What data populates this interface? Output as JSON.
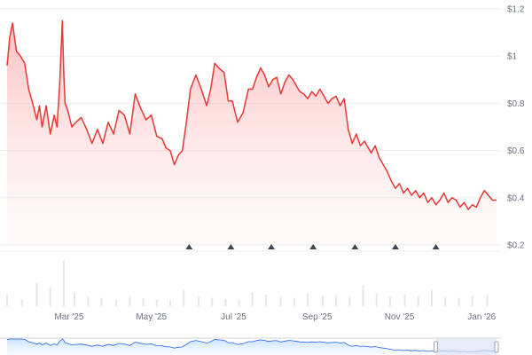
{
  "chart_data": {
    "type": "area",
    "title": "",
    "xlabel": "",
    "ylabel": "",
    "colors": {
      "line": "#e53935",
      "fill": "#fde2e2",
      "grid": "#eceef1",
      "volume": "#e5e7eb",
      "marker": "#3f4654",
      "navigator_line": "#2563eb",
      "navigator_window": "#dbe4f3"
    },
    "grid": true,
    "x_range": [
      "2025-01-14",
      "2026-01-12"
    ],
    "ylim": [
      0.2,
      1.2
    ],
    "y_tick_labels": [
      "$1.2",
      "$1",
      "$0.8",
      "$0.6",
      "$0.4",
      "$0.2"
    ],
    "y_ticks": [
      1.2,
      1.0,
      0.8,
      0.6,
      0.4,
      0.2
    ],
    "x_ticks": [
      {
        "date": "2025-03-01",
        "label": "Mar '25"
      },
      {
        "date": "2025-05-01",
        "label": "May '25"
      },
      {
        "date": "2025-07-01",
        "label": "Jul '25"
      },
      {
        "date": "2025-09-01",
        "label": "Sep '25"
      },
      {
        "date": "2025-11-01",
        "label": "Nov '25"
      },
      {
        "date": "2026-01-01",
        "label": "Jan '26"
      }
    ],
    "series": [
      {
        "x": [
          "2025-01-14",
          "2025-01-16",
          "2025-01-18",
          "2025-01-21",
          "2025-01-24",
          "2025-01-27",
          "2025-01-30",
          "2025-02-02",
          "2025-02-05",
          "2025-02-07",
          "2025-02-09",
          "2025-02-12",
          "2025-02-15",
          "2025-02-18",
          "2025-02-20",
          "2025-02-22",
          "2025-02-24",
          "2025-02-25",
          "2025-02-26",
          "2025-02-28",
          "2025-03-03",
          "2025-03-06",
          "2025-03-10",
          "2025-03-14",
          "2025-03-18",
          "2025-03-22",
          "2025-03-26",
          "2025-03-30",
          "2025-04-03",
          "2025-04-07",
          "2025-04-11",
          "2025-04-15",
          "2025-04-19",
          "2025-04-23",
          "2025-04-27",
          "2025-05-01",
          "2025-05-05",
          "2025-05-09",
          "2025-05-12",
          "2025-05-15",
          "2025-05-18",
          "2025-05-21",
          "2025-05-24",
          "2025-05-27",
          "2025-05-30",
          "2025-06-03",
          "2025-06-07",
          "2025-06-11",
          "2025-06-14",
          "2025-06-17",
          "2025-06-20",
          "2025-06-24",
          "2025-06-27",
          "2025-06-30",
          "2025-07-04",
          "2025-07-08",
          "2025-07-12",
          "2025-07-15",
          "2025-07-18",
          "2025-07-21",
          "2025-07-24",
          "2025-07-27",
          "2025-07-30",
          "2025-08-02",
          "2025-08-05",
          "2025-08-08",
          "2025-08-11",
          "2025-08-14",
          "2025-08-17",
          "2025-08-19",
          "2025-08-22",
          "2025-08-25",
          "2025-08-28",
          "2025-08-31",
          "2025-09-03",
          "2025-09-06",
          "2025-09-09",
          "2025-09-12",
          "2025-09-15",
          "2025-09-18",
          "2025-09-21",
          "2025-09-24",
          "2025-09-27",
          "2025-09-30",
          "2025-10-03",
          "2025-10-06",
          "2025-10-09",
          "2025-10-11",
          "2025-10-14",
          "2025-10-17",
          "2025-10-20",
          "2025-10-23",
          "2025-10-26",
          "2025-10-29",
          "2025-11-01",
          "2025-11-04",
          "2025-11-07",
          "2025-11-10",
          "2025-11-13",
          "2025-11-16",
          "2025-11-19",
          "2025-11-22",
          "2025-11-25",
          "2025-11-28",
          "2025-12-01",
          "2025-12-04",
          "2025-12-07",
          "2025-12-10",
          "2025-12-13",
          "2025-12-16",
          "2025-12-19",
          "2025-12-22",
          "2025-12-25",
          "2025-12-28",
          "2025-12-31",
          "2026-01-03",
          "2026-01-06",
          "2026-01-09",
          "2026-01-12"
        ],
        "values": [
          0.96,
          1.08,
          1.14,
          1.02,
          1.0,
          0.97,
          0.86,
          0.8,
          0.73,
          0.79,
          0.7,
          0.79,
          0.67,
          0.75,
          0.7,
          0.88,
          1.15,
          0.93,
          0.8,
          0.77,
          0.7,
          0.72,
          0.74,
          0.69,
          0.63,
          0.69,
          0.63,
          0.72,
          0.67,
          0.77,
          0.75,
          0.67,
          0.84,
          0.78,
          0.73,
          0.75,
          0.66,
          0.65,
          0.61,
          0.6,
          0.54,
          0.58,
          0.6,
          0.72,
          0.86,
          0.92,
          0.86,
          0.79,
          0.86,
          0.97,
          0.95,
          0.93,
          0.81,
          0.81,
          0.72,
          0.76,
          0.86,
          0.86,
          0.91,
          0.95,
          0.92,
          0.87,
          0.9,
          0.91,
          0.84,
          0.89,
          0.92,
          0.9,
          0.87,
          0.85,
          0.84,
          0.82,
          0.85,
          0.83,
          0.86,
          0.83,
          0.8,
          0.82,
          0.83,
          0.79,
          0.82,
          0.69,
          0.63,
          0.67,
          0.62,
          0.64,
          0.61,
          0.59,
          0.62,
          0.57,
          0.54,
          0.51,
          0.47,
          0.44,
          0.46,
          0.42,
          0.44,
          0.41,
          0.43,
          0.4,
          0.42,
          0.38,
          0.4,
          0.37,
          0.39,
          0.42,
          0.38,
          0.4,
          0.39,
          0.36,
          0.38,
          0.35,
          0.37,
          0.36,
          0.4,
          0.43,
          0.41,
          0.39,
          0.39
        ]
      }
    ],
    "volume_series": {
      "x": [
        "2025-01-14",
        "2025-01-25",
        "2025-02-05",
        "2025-02-15",
        "2025-02-25",
        "2025-03-05",
        "2025-03-15",
        "2025-03-25",
        "2025-04-05",
        "2025-04-15",
        "2025-04-25",
        "2025-05-05",
        "2025-05-15",
        "2025-05-25",
        "2025-06-05",
        "2025-06-15",
        "2025-06-25",
        "2025-07-05",
        "2025-07-15",
        "2025-07-25",
        "2025-08-05",
        "2025-08-15",
        "2025-08-25",
        "2025-09-05",
        "2025-09-15",
        "2025-09-25",
        "2025-10-05",
        "2025-10-15",
        "2025-10-25",
        "2025-11-05",
        "2025-11-15",
        "2025-11-25",
        "2025-12-05",
        "2025-12-15",
        "2025-12-25",
        "2026-01-05"
      ],
      "values": [
        0.25,
        0.15,
        0.5,
        0.4,
        1.0,
        0.3,
        0.2,
        0.18,
        0.15,
        0.2,
        0.17,
        0.14,
        0.12,
        0.35,
        0.2,
        0.18,
        0.16,
        0.15,
        0.3,
        0.25,
        0.2,
        0.18,
        0.28,
        0.22,
        0.24,
        0.2,
        0.45,
        0.28,
        0.2,
        0.26,
        0.22,
        0.35,
        0.2,
        0.18,
        0.22,
        0.25
      ]
    },
    "event_markers": [
      "2025-05-29",
      "2025-06-29",
      "2025-07-29",
      "2025-08-29",
      "2025-09-29",
      "2025-10-29",
      "2025-11-28"
    ],
    "navigator_window": [
      "2025-11-28",
      "2026-01-12"
    ]
  }
}
